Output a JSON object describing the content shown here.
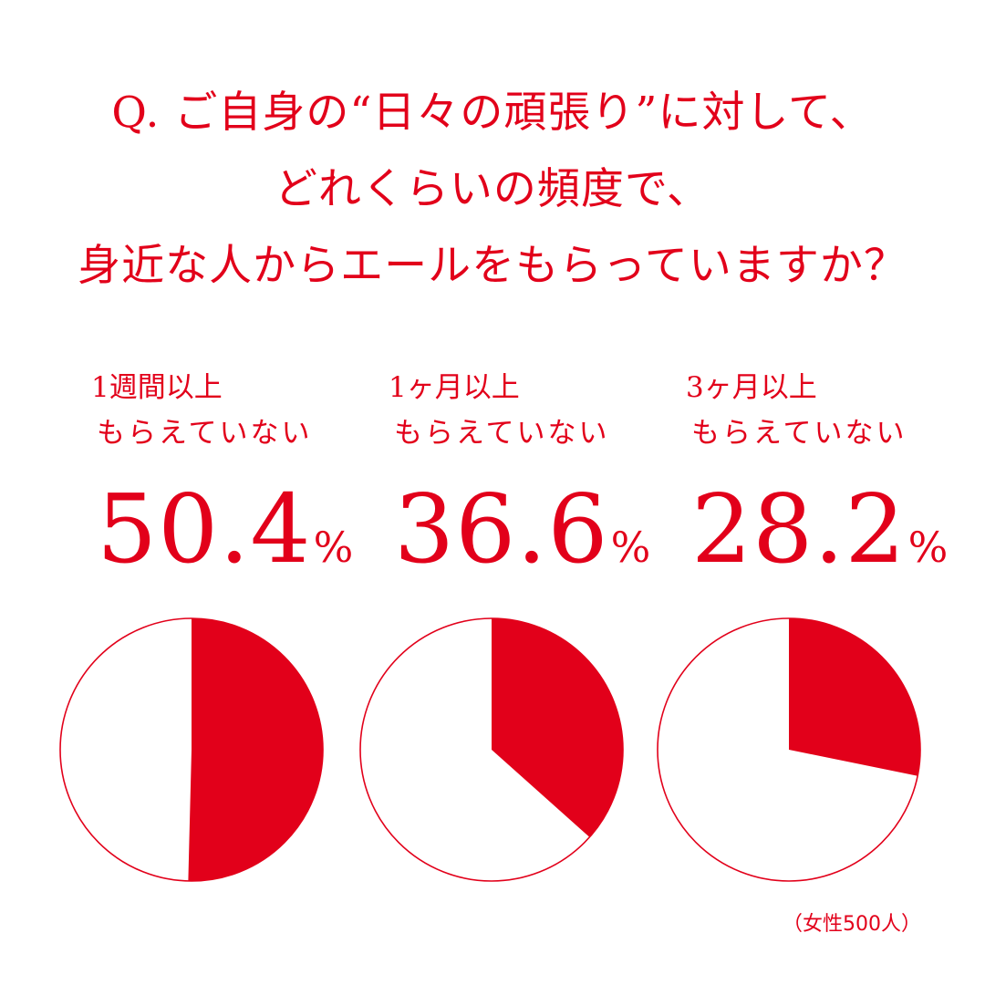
{
  "question": {
    "line1": "Q. ご自身の“日々の頑張り”に対して、",
    "line2": "どれくらいの頻度で、",
    "line3": "身近な人からエールをもらっていますか？"
  },
  "colors": {
    "accent": "#e2001a",
    "background": "#ffffff"
  },
  "chart_data": [
    {
      "type": "pie",
      "label_line1": "1週間以上",
      "label_line2": "もらえていない",
      "value_text": "50.4",
      "unit": "%",
      "value": 50.4
    },
    {
      "type": "pie",
      "label_line1": "1ヶ月以上",
      "label_line2": "もらえていない",
      "value_text": "36.6",
      "unit": "%",
      "value": 36.6
    },
    {
      "type": "pie",
      "label_line1": "3ヶ月以上",
      "label_line2": "もらえていない",
      "value_text": "28.2",
      "unit": "%",
      "value": 28.2
    }
  ],
  "note": "（女性500人）"
}
